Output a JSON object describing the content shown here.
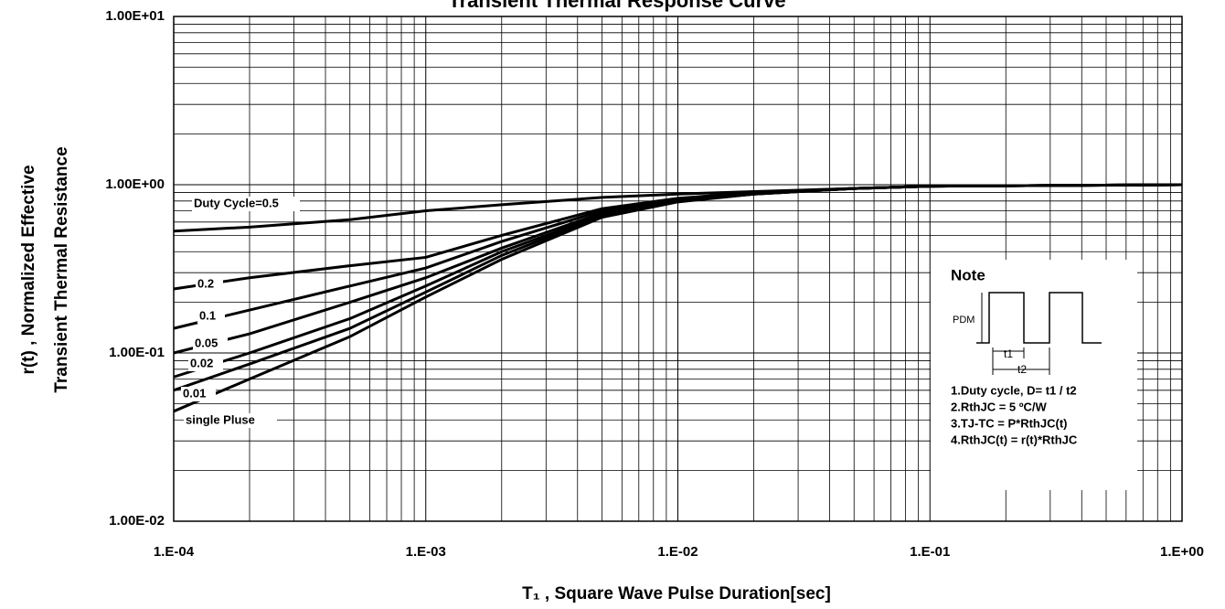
{
  "chart_data": {
    "type": "line",
    "title": "Transient Thermal Response Curve",
    "xlabel": "T₁ , Square Wave Pulse Duration[sec]",
    "ylabel": [
      "r(t) , Normalized Effective",
      "Transient Thermal Resistance"
    ],
    "xlog": true,
    "ylog": true,
    "grid": true,
    "minor_grid": true,
    "xlim": [
      0.0001,
      1
    ],
    "ylim": [
      0.01,
      10
    ],
    "xticks": [
      {
        "value": 0.0001,
        "label": "1.E-04"
      },
      {
        "value": 0.001,
        "label": "1.E-03"
      },
      {
        "value": 0.01,
        "label": "1.E-02"
      },
      {
        "value": 0.1,
        "label": "1.E-01"
      },
      {
        "value": 1,
        "label": "1.E+00"
      }
    ],
    "yticks": [
      {
        "value": 0.01,
        "label": "1.00E-02"
      },
      {
        "value": 0.1,
        "label": "1.00E-01"
      },
      {
        "value": 1,
        "label": "1.00E+00"
      },
      {
        "value": 10,
        "label": "1.00E+01"
      }
    ],
    "x": [
      0.0001,
      0.0002,
      0.0005,
      0.001,
      0.002,
      0.005,
      0.01,
      0.02,
      0.05,
      0.1,
      1
    ],
    "series": [
      {
        "name": "Duty Cycle=0.5",
        "color": "#000000",
        "values": [
          0.53,
          0.56,
          0.62,
          0.7,
          0.76,
          0.84,
          0.88,
          0.91,
          0.95,
          0.98,
          1.0
        ]
      },
      {
        "name": "0.2",
        "color": "#000000",
        "values": [
          0.24,
          0.28,
          0.33,
          0.37,
          0.5,
          0.72,
          0.83,
          0.9,
          0.95,
          0.98,
          1.0
        ]
      },
      {
        "name": "0.1",
        "color": "#000000",
        "values": [
          0.14,
          0.18,
          0.25,
          0.32,
          0.46,
          0.7,
          0.82,
          0.89,
          0.95,
          0.98,
          1.0
        ]
      },
      {
        "name": "0.05",
        "color": "#000000",
        "values": [
          0.1,
          0.13,
          0.2,
          0.28,
          0.42,
          0.68,
          0.81,
          0.89,
          0.95,
          0.98,
          1.0
        ]
      },
      {
        "name": "0.02",
        "color": "#000000",
        "values": [
          0.072,
          0.1,
          0.16,
          0.25,
          0.4,
          0.66,
          0.8,
          0.88,
          0.95,
          0.98,
          1.0
        ]
      },
      {
        "name": "0.01",
        "color": "#000000",
        "values": [
          0.06,
          0.086,
          0.14,
          0.23,
          0.38,
          0.65,
          0.8,
          0.88,
          0.95,
          0.98,
          1.0
        ]
      },
      {
        "name": "single Pluse",
        "color": "#000000",
        "values": [
          0.045,
          0.07,
          0.125,
          0.215,
          0.36,
          0.64,
          0.79,
          0.88,
          0.95,
          0.98,
          1.0
        ]
      }
    ],
    "note": {
      "title": "Note",
      "pdm": "PDM",
      "t1": "t1",
      "t2": "t2",
      "lines": [
        "1.Duty cycle, D= t1 / t2",
        "2.RthJC =   5 ºC/W",
        "3.TJ-TC = P*RthJC(t)",
        "4.RthJC(t) = r(t)*RthJC"
      ]
    }
  }
}
